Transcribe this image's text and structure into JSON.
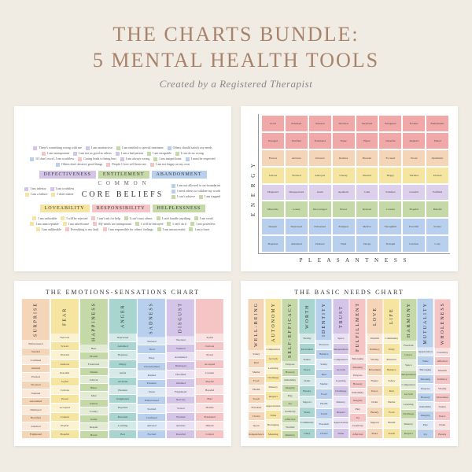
{
  "header": {
    "title_line1": "THE CHARTS BUNDLE:",
    "title_line2": "5 MENTAL HEALTH TOOLS",
    "subtitle": "Created by a Registered Therapist"
  },
  "colors": {
    "purple": "#d4c5e8",
    "green": "#c5d9a8",
    "yellow": "#f5e5a0",
    "blue": "#b8d0ed",
    "pink": "#f5c5c5",
    "peach": "#f5d5b8",
    "red": "#f0a8a8",
    "teal": "#a8d5d0",
    "lavender": "#dcd0ed"
  },
  "core_beliefs": {
    "pretitle": "C O M M O N",
    "title": "CORE BELIEFS",
    "tags_top": [
      {
        "label": "DEFECTIVENESS",
        "color": "#d4c5e8"
      },
      {
        "label": "ENTITLEMENT",
        "color": "#c5d9a8"
      },
      {
        "label": "ABANDONMENT",
        "color": "#b8d0ed"
      }
    ],
    "tags_bottom": [
      {
        "label": "LOVEABILITY",
        "color": "#f5e5a0"
      },
      {
        "label": "RESPONSIBILITY",
        "color": "#f5c5c5"
      },
      {
        "label": "HELPLESSNESS",
        "color": "#c5d9a8"
      }
    ],
    "items_top": [
      {
        "c": "#d4c5e8",
        "t": "There's something wrong with me"
      },
      {
        "c": "#d4c5e8",
        "t": "I am unattractive"
      },
      {
        "c": "#c5d9a8",
        "t": "I am entitled to special treatment"
      },
      {
        "c": "#b8d0ed",
        "t": "Others should satisfy my needs"
      },
      {
        "c": "#f5c5c5",
        "t": "I am unimportant"
      },
      {
        "c": "#d4c5e8",
        "t": "I am not as good as others"
      },
      {
        "c": "#d4c5e8",
        "t": "I am a bad person"
      },
      {
        "c": "#c5d9a8",
        "t": "I am incapable"
      },
      {
        "c": "#c5d9a8",
        "t": "I can do no wrong"
      },
      {
        "c": "#b8d0ed",
        "t": "If I don't excel, I am worthless"
      },
      {
        "c": "#f5c5c5",
        "t": "Caring leads to being hurt"
      },
      {
        "c": "#d4c5e8",
        "t": "I am always wrong"
      },
      {
        "c": "#c5d9a8",
        "t": "I am insignificant"
      },
      {
        "c": "#b8d0ed",
        "t": "I must be respected"
      },
      {
        "c": "#b8d0ed",
        "t": "Others don't deserve good things"
      },
      {
        "c": "#f5c5c5",
        "t": "People I love will leave me"
      },
      {
        "c": "#f5c5c5",
        "t": "I am not happy on my own"
      }
    ],
    "items_mid_left": [
      {
        "c": "#d4c5e8",
        "t": "I am inferior"
      },
      {
        "c": "#d4c5e8",
        "t": "I am worthless"
      },
      {
        "c": "#f5e5a0",
        "t": "I am a failure"
      },
      {
        "c": "#f5e5a0",
        "t": "I don't matter"
      }
    ],
    "items_mid_right": [
      {
        "c": "#b8d0ed",
        "t": "I am not allowed to set boundaries"
      },
      {
        "c": "#b8d0ed",
        "t": "I need others to validate my worth"
      },
      {
        "c": "#c5d9a8",
        "t": "I can't achieve"
      },
      {
        "c": "#c5d9a8",
        "t": "I am trapped"
      }
    ],
    "items_bottom": [
      {
        "c": "#f5e5a0",
        "t": "I am unlovable"
      },
      {
        "c": "#f5e5a0",
        "t": "I will be rejected"
      },
      {
        "c": "#f5c5c5",
        "t": "I can't ask for help"
      },
      {
        "c": "#c5d9a8",
        "t": "I can't trust others"
      },
      {
        "c": "#c5d9a8",
        "t": "I can't handle anything"
      },
      {
        "c": "#c5d9a8",
        "t": "I am weak"
      },
      {
        "c": "#f5e5a0",
        "t": "I am unacceptable"
      },
      {
        "c": "#f5e5a0",
        "t": "I am unwelcome"
      },
      {
        "c": "#f5c5c5",
        "t": "My needs are unimportant"
      },
      {
        "c": "#c5d9a8",
        "t": "I will be betrayed"
      },
      {
        "c": "#c5d9a8",
        "t": "I can't do it"
      },
      {
        "c": "#c5d9a8",
        "t": "I am powerless"
      },
      {
        "c": "#f5e5a0",
        "t": "I am unlikeable"
      },
      {
        "c": "#f5c5c5",
        "t": "Everything is my fault"
      },
      {
        "c": "#f5c5c5",
        "t": "I am responsible for others' feelings"
      },
      {
        "c": "#c5d9a8",
        "t": "I am unsuccessful"
      },
      {
        "c": "#c5d9a8",
        "t": "I am a loser"
      }
    ]
  },
  "energy_chart": {
    "y_label": "E N E R G Y",
    "x_label": "P L E A S A N T N E S S",
    "row_colors": [
      "#f0a8a8",
      "#f0a8a8",
      "#f5d5b8",
      "#f5e5a0",
      "#dcd0ed",
      "#c5d9a8",
      "#b8d0ed",
      "#b8d0ed"
    ],
    "cells": [
      "Livid",
      "Panicked",
      "Stressed",
      "Shocked",
      "Surprised",
      "Energized",
      "Ecstatic",
      "Enthusiastic",
      "Enraged",
      "Terrified",
      "Frustrated",
      "Tense",
      "Hyper",
      "Cheerful",
      "Inspired",
      "Elated",
      "Furious",
      "Anxious",
      "Irritated",
      "Restless",
      "Pleasant",
      "Focused",
      "Proud",
      "Optimistic",
      "Jealous",
      "Worried",
      "Annoyed",
      "Uneasy",
      "Pleased",
      "Happy",
      "Thrilled",
      "Excited",
      "Disgusted",
      "Disappointed",
      "Glum",
      "Apathetic",
      "Calm",
      "Satisfied",
      "Grateful",
      "Fulfilled",
      "Miserable",
      "Lonely",
      "Discouraged",
      "Bored",
      "Relaxed",
      "Content",
      "Hopeful",
      "Blissful",
      "Despair",
      "Depressed",
      "Exhausted",
      "Fatigued",
      "Mellow",
      "Thoughtful",
      "Peaceful",
      "Serene",
      "Hopeless",
      "Alienated",
      "Drained",
      "Tired",
      "Sleepy",
      "Tranquil",
      "Carefree",
      "Cozy"
    ]
  },
  "emotions_chart": {
    "title": "THE EMOTIONS-SENSATIONS CHART",
    "columns": [
      {
        "name": "SURPRISE",
        "full": "#f5d5b8",
        "light": "#fae8d8"
      },
      {
        "name": "FEAR",
        "full": "#f5e5a0",
        "light": "#faf2d0"
      },
      {
        "name": "HAPPINESS",
        "full": "#c5d9a8",
        "light": "#e2ecd4"
      },
      {
        "name": "ANGER",
        "full": "#a8d5d0",
        "light": "#d4eae8"
      },
      {
        "name": "SADNESS",
        "full": "#b8d0ed",
        "light": "#dce8f6"
      },
      {
        "name": "DISGUST",
        "full": "#d4c5e8",
        "light": "#eae2f4"
      },
      {
        "name": "",
        "full": "#f5c5c5",
        "light": "#fae2e2"
      }
    ],
    "sample_words": [
      "Embarrassed",
      "Startled",
      "Confused",
      "Amazed",
      "Excited",
      "Shocked",
      "Stunned",
      "Astonished",
      "Dismayed",
      "Horrified",
      "Alarmed",
      "Frightened",
      "Nervous",
      "Scared",
      "Worried",
      "Anxious",
      "Peaceful",
      "Joyful",
      "Curious",
      "Proud",
      "Accepted",
      "Content",
      "Playful",
      "Hopeful",
      "Hurt",
      "Hostile",
      "Frustrated",
      "Distant",
      "Critical",
      "Bitter",
      "Mad",
      "Jealous",
      "Lonely",
      "Guilty",
      "Despair",
      "Bored",
      "Depressed",
      "Ashamed",
      "Hopeless",
      "Empty",
      "Awful",
      "Avoidant",
      "Hesitant",
      "Judgmental",
      "Repelled",
      "Revolted",
      "Loathing",
      "Bad",
      "Stressed",
      "Tired",
      "Busy",
      "Overwhelmed",
      "Rushed",
      "Pressure",
      "Tense"
    ]
  },
  "needs_chart": {
    "title": "THE BASIC NEEDS CHART",
    "columns": [
      {
        "name": "WELL-BEING",
        "full": "#f5d5b8",
        "light": "#fae8d8"
      },
      {
        "name": "AUTONOMY",
        "full": "#f5e5a0",
        "light": "#faf2d0"
      },
      {
        "name": "SELF-EFFICACY",
        "full": "#c5d9a8",
        "light": "#e2ecd4"
      },
      {
        "name": "WORTH",
        "full": "#a8d5d0",
        "light": "#d4eae8"
      },
      {
        "name": "IDENTITY",
        "full": "#b8d0ed",
        "light": "#dce8f6"
      },
      {
        "name": "TRUST",
        "full": "#d4c5e8",
        "light": "#eae2f4"
      },
      {
        "name": "FULFILLMENT",
        "full": "#f5c5c5",
        "light": "#fae2e2"
      },
      {
        "name": "LOVE",
        "full": "#f5d5b8",
        "light": "#fae8d8"
      },
      {
        "name": "LIFE",
        "full": "#f5e5a0",
        "light": "#faf2d0"
      },
      {
        "name": "HARMONY",
        "full": "#c5d9a8",
        "light": "#e2ecd4"
      },
      {
        "name": "MUTUALITY",
        "full": "#b8d0ed",
        "light": "#dce8f6"
      },
      {
        "name": "WHOLENESS",
        "full": "#f5c5c5",
        "light": "#fae2e2"
      }
    ],
    "sample_words": [
      "Safety",
      "Rest",
      "Shelter",
      "Food",
      "Health",
      "Touch",
      "Freedom",
      "Choice",
      "Space",
      "Independence",
      "Competence",
      "Growth",
      "Learning",
      "Challenge",
      "Mastery",
      "Respect",
      "Appreciation",
      "Value",
      "Belonging",
      "Meaning",
      "Purpose",
      "Honesty",
      "Reliability",
      "Integrity",
      "Play",
      "Joy",
      "Creativity",
      "Affection",
      "Warmth",
      "Intimacy",
      "Vitality",
      "Movement",
      "Nature",
      "Peace",
      "Order",
      "Beauty",
      "Support",
      "Share",
      "Community",
      "Unity",
      "Presence",
      "Balance"
    ]
  }
}
